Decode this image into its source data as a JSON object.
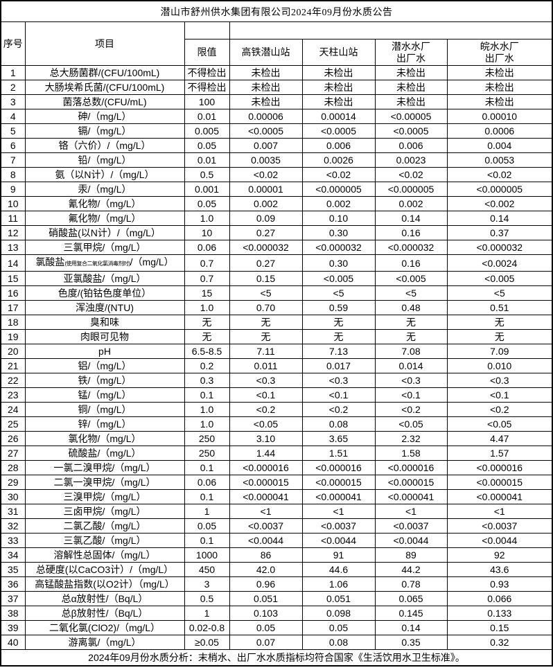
{
  "title": "潜山市舒州供水集团有限公司2024年09月份水质公告",
  "header": {
    "serial": "序号",
    "item": "项目",
    "limit": "限值",
    "stations": [
      {
        "label": "高铁潜山站"
      },
      {
        "label": "天柱山站"
      },
      {
        "label": "潜水水厂\n出厂水"
      },
      {
        "label": "皖水水厂\n出厂水"
      }
    ]
  },
  "rows": [
    {
      "no": "1",
      "item": "总大肠菌群/(CFU/100mL)",
      "limit": "不得检出",
      "values": [
        "未检出",
        "未检出",
        "未检出",
        "未检出"
      ]
    },
    {
      "no": "2",
      "item": "大肠埃希氏菌/(CFU/100mL)",
      "limit": "不得检出",
      "values": [
        "未检出",
        "未检出",
        "未检出",
        "未检出"
      ]
    },
    {
      "no": "3",
      "item": "菌落总数/(CFU/mL)",
      "limit": "100",
      "values": [
        "未检出",
        "未检出",
        "未检出",
        "未检出"
      ]
    },
    {
      "no": "4",
      "item": "砷/（mg/L）",
      "limit": "0.01",
      "values": [
        "0.00006",
        "0.00014",
        "<0.00005",
        "0.00010"
      ]
    },
    {
      "no": "5",
      "item": "镉/（mg/L）",
      "limit": "0.005",
      "values": [
        "<0.0005",
        "<0.0005",
        "<0.0005",
        "0.0006"
      ]
    },
    {
      "no": "6",
      "item": "铬（六价）/（mg/L）",
      "limit": "0.05",
      "values": [
        "0.007",
        "0.006",
        "0.006",
        "0.004"
      ]
    },
    {
      "no": "7",
      "item": "铅/（mg/L）",
      "limit": "0.01",
      "values": [
        "0.0035",
        "0.0026",
        "0.0023",
        "0.0053"
      ]
    },
    {
      "no": "8",
      "item": "氨（以N计）/（mg/L）",
      "limit": "0.5",
      "values": [
        "<0.02",
        "<0.02",
        "<0.02",
        "<0.02"
      ]
    },
    {
      "no": "9",
      "item": "汞/（mg/L）",
      "limit": "0.001",
      "values": [
        "0.00001",
        "<0.000005",
        "<0.000005",
        "<0.000005"
      ]
    },
    {
      "no": "10",
      "item": "氰化物/（mg/L）",
      "limit": "0.05",
      "values": [
        "0.002",
        "0.002",
        "0.002",
        "<0.002"
      ]
    },
    {
      "no": "11",
      "item": "氟化物/（mg/L）",
      "limit": "1.0",
      "values": [
        "0.09",
        "0.10",
        "0.14",
        "0.14"
      ]
    },
    {
      "no": "12",
      "item": "硝酸盐(以N计）/（mg/L）",
      "limit": "10",
      "values": [
        "0.27",
        "0.30",
        "0.16",
        "0.37"
      ]
    },
    {
      "no": "13",
      "item": "三氯甲烷/（mg/L）",
      "limit": "0.06",
      "values": [
        "<0.000032",
        "<0.000032",
        "<0.000032",
        "<0.000032"
      ]
    },
    {
      "no": "14",
      "item_pre": "氯酸盐",
      "item_small": "(使用复合二氧化氯消毒剂时)",
      "item_post": "/（mg/L）",
      "limit": "0.7",
      "values": [
        "0.27",
        "0.30",
        "0.16",
        "<0.0024"
      ]
    },
    {
      "no": "15",
      "item": "亚氯酸盐/（mg/L）",
      "limit": "0.7",
      "values": [
        "0.15",
        "<0.005",
        "<0.005",
        "<0.005"
      ]
    },
    {
      "no": "16",
      "item": "色度/(铂钴色度单位）",
      "limit": "15",
      "values": [
        "<5",
        "<5",
        "<5",
        "<5"
      ]
    },
    {
      "no": "17",
      "item": "浑浊度/(NTU)",
      "limit": "1.0",
      "values": [
        "0.70",
        "0.59",
        "0.48",
        "0.51"
      ]
    },
    {
      "no": "18",
      "item": "臭和味",
      "limit": "无",
      "values": [
        "无",
        "无",
        "无",
        "无"
      ]
    },
    {
      "no": "19",
      "item": "肉眼可见物",
      "limit": "无",
      "values": [
        "无",
        "无",
        "无",
        "无"
      ]
    },
    {
      "no": "20",
      "item": "pH",
      "limit": "6.5-8.5",
      "values": [
        "7.11",
        "7.13",
        "7.08",
        "7.09"
      ]
    },
    {
      "no": "21",
      "item": "铝/（mg/L）",
      "limit": "0.2",
      "values": [
        "0.011",
        "0.017",
        "0.014",
        "0.010"
      ]
    },
    {
      "no": "22",
      "item": "铁/（mg/L）",
      "limit": "0.3",
      "values": [
        "<0.3",
        "<0.3",
        "<0.3",
        "<0.3"
      ]
    },
    {
      "no": "23",
      "item": "锰/（mg/L）",
      "limit": "0.1",
      "values": [
        "<0.1",
        "<0.1",
        "<0.1",
        "<0.1"
      ]
    },
    {
      "no": "24",
      "item": "铜/（mg/L）",
      "limit": "1.0",
      "values": [
        "<0.2",
        "<0.2",
        "<0.2",
        "<0.2"
      ]
    },
    {
      "no": "25",
      "item": "锌/（mg/L）",
      "limit": "1.0",
      "values": [
        "<0.05",
        "0.08",
        "<0.05",
        "<0.05"
      ]
    },
    {
      "no": "26",
      "item": "氯化物/（mg/L）",
      "limit": "250",
      "values": [
        "3.10",
        "3.65",
        "2.32",
        "4.47"
      ]
    },
    {
      "no": "27",
      "item": "硫酸盐/（mg/L）",
      "limit": "250",
      "values": [
        "1.44",
        "1.51",
        "1.58",
        "1.57"
      ]
    },
    {
      "no": "28",
      "item": "一氯二溴甲烷/（mg/L）",
      "limit": "0.1",
      "values": [
        "<0.000016",
        "<0.000016",
        "<0.000016",
        "<0.000016"
      ]
    },
    {
      "no": "29",
      "item": "二氯一溴甲烷/（mg/L）",
      "limit": "0.06",
      "values": [
        "<0.000015",
        "<0.000015",
        "<0.000015",
        "<0.000015"
      ]
    },
    {
      "no": "30",
      "item": "三溴甲烷/（mg/L）",
      "limit": "0.1",
      "values": [
        "<0.000041",
        "<0.000041",
        "<0.000041",
        "<0.000041"
      ]
    },
    {
      "no": "31",
      "item": "三卤甲烷/（mg/L）",
      "limit": "1",
      "values": [
        "<1",
        "<1",
        "<1",
        "<1"
      ]
    },
    {
      "no": "32",
      "item": "二氯乙酸/（mg/L）",
      "limit": "0.05",
      "values": [
        "<0.0037",
        "<0.0037",
        "<0.0037",
        "<0.0037"
      ]
    },
    {
      "no": "33",
      "item": "三氯乙酸/（mg/L）",
      "limit": "0.1",
      "values": [
        "<0.0044",
        "<0.0044",
        "<0.0044",
        "<0.0044"
      ]
    },
    {
      "no": "34",
      "item": "溶解性总固体/（mg/L）",
      "limit": "1000",
      "values": [
        "86",
        "91",
        "89",
        "92"
      ]
    },
    {
      "no": "35",
      "item": "总硬度(以CaCO3计）/（mg/L）",
      "limit": "450",
      "values": [
        "42.0",
        "44.6",
        "44.2",
        "43.6"
      ]
    },
    {
      "no": "36",
      "item": "高锰酸盐指数(以O2计）（mg/L）",
      "limit": "3",
      "values": [
        "0.96",
        "1.06",
        "0.78",
        "0.93"
      ]
    },
    {
      "no": "37",
      "item": "总α放射性/（Bq/L）",
      "limit": "0.5",
      "values": [
        "0.051",
        "0.051",
        "0.065",
        "0.066"
      ]
    },
    {
      "no": "38",
      "item": "总β放射性/（Bq/L）",
      "limit": "1",
      "values": [
        "0.103",
        "0.098",
        "0.145",
        "0.133"
      ]
    },
    {
      "no": "39",
      "item": "二氧化氯(ClO2)/（mg/L）",
      "limit": "0.02-0.8",
      "values": [
        "0.05",
        "0.05",
        "0.14",
        "0.15"
      ]
    },
    {
      "no": "40",
      "item": "游离氯/（mg/L）",
      "limit": "≥0.05",
      "values": [
        "0.07",
        "0.08",
        "0.35",
        "0.32"
      ]
    }
  ],
  "footer": {
    "text": "2024年09月份水质分析：末梢水、出厂水水质指标均符合国家《生活饮用水卫生标准》。"
  }
}
